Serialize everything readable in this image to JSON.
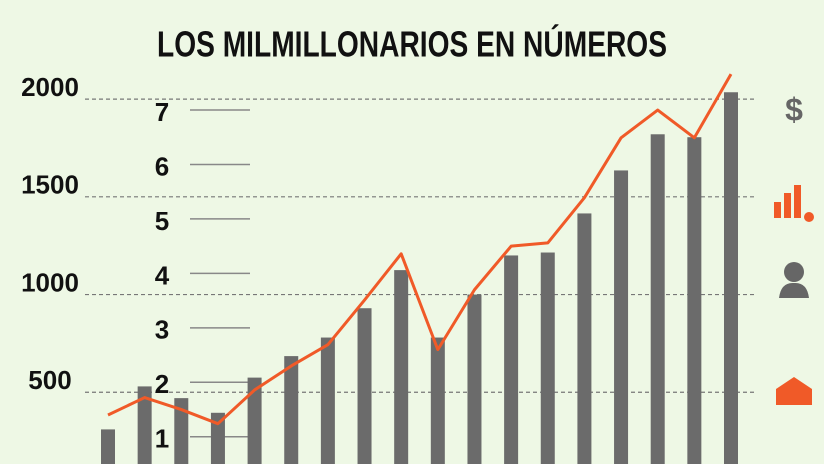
{
  "chart_data": {
    "type": "bar_line",
    "title": "LOS MILMILLONARIOS EN NÚMEROS",
    "series": [
      {
        "color": "#6b6b6b",
        "values": [
          310,
          530,
          470,
          395,
          575,
          685,
          780,
          930,
          1125,
          780,
          1000,
          1200,
          1215,
          1415,
          1635,
          1820,
          1805,
          2035
        ]
      },
      {
        "color": "#f05a28",
        "axis": "y2",
        "values": [
          1.4,
          1.72,
          1.5,
          1.24,
          1.86,
          2.3,
          2.69,
          3.51,
          4.36,
          2.6,
          3.7,
          4.5,
          4.56,
          5.39,
          6.49,
          7.0,
          6.49,
          7.66
        ]
      }
    ],
    "ylim": [
      133,
      2507
    ],
    "yticks": [
      500,
      1000,
      1500,
      2000
    ],
    "y2lim": [
      0.5,
      9.02
    ],
    "y2ticks": [
      1,
      2,
      3,
      4,
      5,
      6,
      7
    ],
    "grid": true,
    "icon_text": "$"
  }
}
